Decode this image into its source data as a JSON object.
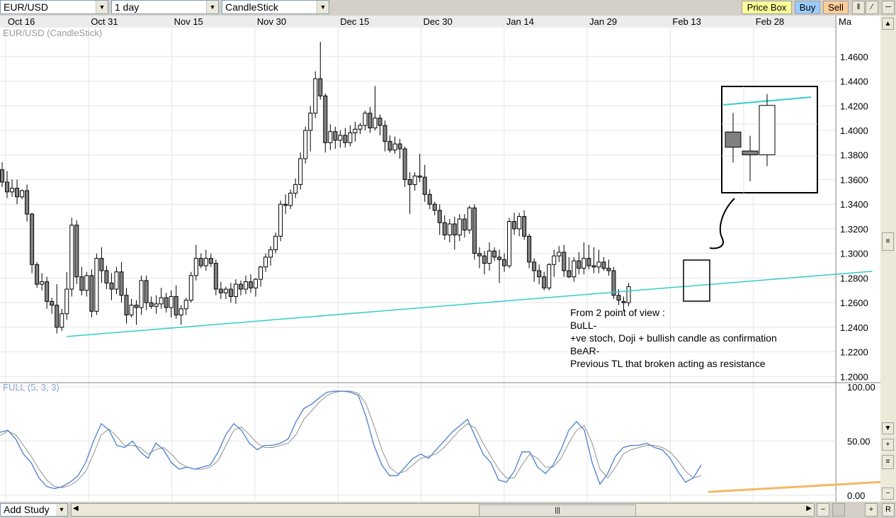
{
  "toolbar": {
    "symbol": "EUR/USD",
    "interval": "1 day",
    "chart_style": "CandleStick",
    "price_box_label": "Price Box",
    "buy_label": "Buy",
    "sell_label": "Sell"
  },
  "chart_label": "EUR/USD (CandleStick)",
  "stoch_label": "FULL (5, 3, 3)",
  "colors": {
    "trendline": "#33cccc",
    "support_line": "#f5b865",
    "stoch_k": "#4a7fd0",
    "stoch_d": "#909090",
    "candle_down": "#808080",
    "candle_up": "#ffffff",
    "price_box_bg": "#ffff99",
    "buy_bg": "#99ccff",
    "sell_bg": "#ffcc99"
  },
  "annotation": {
    "lines": [
      "From 2 point of view :",
      "BuLL-",
      "+ve stoch, Doji + bullish candle as confirmation",
      "BeAR-",
      "Previous TL that broken acting as resistance"
    ]
  },
  "bottom": {
    "add_study_label": "Add Study",
    "r_label": "R"
  },
  "chart_data": [
    {
      "type": "candlestick",
      "title": "EUR/USD (CandleStick)",
      "x_tick_labels": [
        "Oct 16",
        "Oct 31",
        "Nov 15",
        "Nov 30",
        "Dec 15",
        "Dec 30",
        "Jan 14",
        "Jan 29",
        "Feb 13",
        "Feb 28",
        "Ma"
      ],
      "y_tick_labels": [
        "1.2000",
        "1.2200",
        "1.2400",
        "1.2600",
        "1.2800",
        "1.3000",
        "1.3200",
        "1.3400",
        "1.3600",
        "1.3800",
        "1.4000",
        "1.4200",
        "1.4400",
        "1.4600"
      ],
      "ylim": [
        1.195,
        1.4835
      ],
      "grid": true,
      "candles": [
        {
          "o": 1.368,
          "h": 1.374,
          "l": 1.354,
          "c": 1.358
        },
        {
          "o": 1.358,
          "h": 1.367,
          "l": 1.345,
          "c": 1.35
        },
        {
          "o": 1.35,
          "h": 1.36,
          "l": 1.346,
          "c": 1.353
        },
        {
          "o": 1.353,
          "h": 1.36,
          "l": 1.34,
          "c": 1.346
        },
        {
          "o": 1.346,
          "h": 1.352,
          "l": 1.344,
          "c": 1.351
        },
        {
          "o": 1.351,
          "h": 1.356,
          "l": 1.326,
          "c": 1.332
        },
        {
          "o": 1.332,
          "h": 1.333,
          "l": 1.284,
          "c": 1.291
        },
        {
          "o": 1.291,
          "h": 1.293,
          "l": 1.272,
          "c": 1.275
        },
        {
          "o": 1.275,
          "h": 1.284,
          "l": 1.27,
          "c": 1.277
        },
        {
          "o": 1.277,
          "h": 1.281,
          "l": 1.255,
          "c": 1.261
        },
        {
          "o": 1.261,
          "h": 1.264,
          "l": 1.251,
          "c": 1.258
        },
        {
          "o": 1.258,
          "h": 1.275,
          "l": 1.235,
          "c": 1.24
        },
        {
          "o": 1.24,
          "h": 1.255,
          "l": 1.237,
          "c": 1.251
        },
        {
          "o": 1.251,
          "h": 1.285,
          "l": 1.246,
          "c": 1.271
        },
        {
          "o": 1.271,
          "h": 1.329,
          "l": 1.265,
          "c": 1.323
        },
        {
          "o": 1.323,
          "h": 1.327,
          "l": 1.275,
          "c": 1.281
        },
        {
          "o": 1.281,
          "h": 1.289,
          "l": 1.266,
          "c": 1.27
        },
        {
          "o": 1.27,
          "h": 1.285,
          "l": 1.265,
          "c": 1.282
        },
        {
          "o": 1.282,
          "h": 1.287,
          "l": 1.248,
          "c": 1.253
        },
        {
          "o": 1.253,
          "h": 1.3,
          "l": 1.25,
          "c": 1.296
        },
        {
          "o": 1.296,
          "h": 1.305,
          "l": 1.276,
          "c": 1.286
        },
        {
          "o": 1.286,
          "h": 1.29,
          "l": 1.271,
          "c": 1.276
        },
        {
          "o": 1.276,
          "h": 1.284,
          "l": 1.262,
          "c": 1.271
        },
        {
          "o": 1.271,
          "h": 1.289,
          "l": 1.267,
          "c": 1.285
        },
        {
          "o": 1.285,
          "h": 1.293,
          "l": 1.26,
          "c": 1.266
        },
        {
          "o": 1.266,
          "h": 1.272,
          "l": 1.243,
          "c": 1.25
        },
        {
          "o": 1.25,
          "h": 1.263,
          "l": 1.248,
          "c": 1.258
        },
        {
          "o": 1.258,
          "h": 1.262,
          "l": 1.242,
          "c": 1.256
        },
        {
          "o": 1.256,
          "h": 1.282,
          "l": 1.25,
          "c": 1.278
        },
        {
          "o": 1.278,
          "h": 1.282,
          "l": 1.254,
          "c": 1.26
        },
        {
          "o": 1.26,
          "h": 1.265,
          "l": 1.255,
          "c": 1.257
        },
        {
          "o": 1.257,
          "h": 1.266,
          "l": 1.251,
          "c": 1.259
        },
        {
          "o": 1.259,
          "h": 1.272,
          "l": 1.255,
          "c": 1.264
        },
        {
          "o": 1.264,
          "h": 1.268,
          "l": 1.252,
          "c": 1.256
        },
        {
          "o": 1.256,
          "h": 1.27,
          "l": 1.248,
          "c": 1.265
        },
        {
          "o": 1.265,
          "h": 1.274,
          "l": 1.247,
          "c": 1.25
        },
        {
          "o": 1.25,
          "h": 1.258,
          "l": 1.242,
          "c": 1.255
        },
        {
          "o": 1.255,
          "h": 1.264,
          "l": 1.25,
          "c": 1.262
        },
        {
          "o": 1.262,
          "h": 1.285,
          "l": 1.26,
          "c": 1.282
        },
        {
          "o": 1.282,
          "h": 1.307,
          "l": 1.278,
          "c": 1.296
        },
        {
          "o": 1.296,
          "h": 1.3,
          "l": 1.288,
          "c": 1.29
        },
        {
          "o": 1.29,
          "h": 1.303,
          "l": 1.286,
          "c": 1.296
        },
        {
          "o": 1.296,
          "h": 1.3,
          "l": 1.289,
          "c": 1.292
        },
        {
          "o": 1.292,
          "h": 1.295,
          "l": 1.266,
          "c": 1.271
        },
        {
          "o": 1.271,
          "h": 1.277,
          "l": 1.263,
          "c": 1.268
        },
        {
          "o": 1.268,
          "h": 1.273,
          "l": 1.263,
          "c": 1.271
        },
        {
          "o": 1.271,
          "h": 1.276,
          "l": 1.26,
          "c": 1.265
        },
        {
          "o": 1.265,
          "h": 1.279,
          "l": 1.259,
          "c": 1.275
        },
        {
          "o": 1.275,
          "h": 1.278,
          "l": 1.266,
          "c": 1.271
        },
        {
          "o": 1.271,
          "h": 1.282,
          "l": 1.267,
          "c": 1.277
        },
        {
          "o": 1.277,
          "h": 1.283,
          "l": 1.268,
          "c": 1.272
        },
        {
          "o": 1.272,
          "h": 1.28,
          "l": 1.265,
          "c": 1.279
        },
        {
          "o": 1.279,
          "h": 1.29,
          "l": 1.273,
          "c": 1.289
        },
        {
          "o": 1.289,
          "h": 1.3,
          "l": 1.285,
          "c": 1.297
        },
        {
          "o": 1.297,
          "h": 1.306,
          "l": 1.29,
          "c": 1.303
        },
        {
          "o": 1.303,
          "h": 1.317,
          "l": 1.3,
          "c": 1.314
        },
        {
          "o": 1.314,
          "h": 1.343,
          "l": 1.31,
          "c": 1.34
        },
        {
          "o": 1.34,
          "h": 1.348,
          "l": 1.332,
          "c": 1.339
        },
        {
          "o": 1.339,
          "h": 1.352,
          "l": 1.336,
          "c": 1.349
        },
        {
          "o": 1.349,
          "h": 1.361,
          "l": 1.345,
          "c": 1.356
        },
        {
          "o": 1.356,
          "h": 1.382,
          "l": 1.352,
          "c": 1.377
        },
        {
          "o": 1.377,
          "h": 1.403,
          "l": 1.373,
          "c": 1.4
        },
        {
          "o": 1.4,
          "h": 1.42,
          "l": 1.383,
          "c": 1.414
        },
        {
          "o": 1.414,
          "h": 1.448,
          "l": 1.41,
          "c": 1.442
        },
        {
          "o": 1.442,
          "h": 1.472,
          "l": 1.425,
          "c": 1.428
        },
        {
          "o": 1.428,
          "h": 1.43,
          "l": 1.382,
          "c": 1.39
        },
        {
          "o": 1.39,
          "h": 1.405,
          "l": 1.384,
          "c": 1.399
        },
        {
          "o": 1.399,
          "h": 1.403,
          "l": 1.385,
          "c": 1.392
        },
        {
          "o": 1.392,
          "h": 1.4,
          "l": 1.386,
          "c": 1.396
        },
        {
          "o": 1.396,
          "h": 1.402,
          "l": 1.386,
          "c": 1.39
        },
        {
          "o": 1.39,
          "h": 1.404,
          "l": 1.387,
          "c": 1.398
        },
        {
          "o": 1.398,
          "h": 1.407,
          "l": 1.391,
          "c": 1.401
        },
        {
          "o": 1.401,
          "h": 1.406,
          "l": 1.397,
          "c": 1.404
        },
        {
          "o": 1.404,
          "h": 1.416,
          "l": 1.4,
          "c": 1.414
        },
        {
          "o": 1.414,
          "h": 1.419,
          "l": 1.398,
          "c": 1.402
        },
        {
          "o": 1.402,
          "h": 1.436,
          "l": 1.4,
          "c": 1.41
        },
        {
          "o": 1.41,
          "h": 1.413,
          "l": 1.396,
          "c": 1.404
        },
        {
          "o": 1.404,
          "h": 1.408,
          "l": 1.383,
          "c": 1.391
        },
        {
          "o": 1.391,
          "h": 1.396,
          "l": 1.382,
          "c": 1.384
        },
        {
          "o": 1.384,
          "h": 1.395,
          "l": 1.381,
          "c": 1.389
        },
        {
          "o": 1.389,
          "h": 1.393,
          "l": 1.377,
          "c": 1.385
        },
        {
          "o": 1.385,
          "h": 1.387,
          "l": 1.354,
          "c": 1.36
        },
        {
          "o": 1.36,
          "h": 1.366,
          "l": 1.332,
          "c": 1.356
        },
        {
          "o": 1.356,
          "h": 1.366,
          "l": 1.351,
          "c": 1.363
        },
        {
          "o": 1.363,
          "h": 1.381,
          "l": 1.358,
          "c": 1.362
        },
        {
          "o": 1.362,
          "h": 1.372,
          "l": 1.342,
          "c": 1.348
        },
        {
          "o": 1.348,
          "h": 1.352,
          "l": 1.336,
          "c": 1.34
        },
        {
          "o": 1.34,
          "h": 1.342,
          "l": 1.331,
          "c": 1.335
        },
        {
          "o": 1.335,
          "h": 1.34,
          "l": 1.315,
          "c": 1.325
        },
        {
          "o": 1.325,
          "h": 1.331,
          "l": 1.311,
          "c": 1.315
        },
        {
          "o": 1.315,
          "h": 1.328,
          "l": 1.309,
          "c": 1.324
        },
        {
          "o": 1.324,
          "h": 1.33,
          "l": 1.303,
          "c": 1.315
        },
        {
          "o": 1.315,
          "h": 1.332,
          "l": 1.31,
          "c": 1.328
        },
        {
          "o": 1.328,
          "h": 1.332,
          "l": 1.313,
          "c": 1.319
        },
        {
          "o": 1.319,
          "h": 1.339,
          "l": 1.316,
          "c": 1.337
        },
        {
          "o": 1.337,
          "h": 1.34,
          "l": 1.295,
          "c": 1.3
        },
        {
          "o": 1.3,
          "h": 1.305,
          "l": 1.288,
          "c": 1.298
        },
        {
          "o": 1.298,
          "h": 1.302,
          "l": 1.283,
          "c": 1.292
        },
        {
          "o": 1.292,
          "h": 1.309,
          "l": 1.286,
          "c": 1.302
        },
        {
          "o": 1.302,
          "h": 1.305,
          "l": 1.294,
          "c": 1.297
        },
        {
          "o": 1.297,
          "h": 1.303,
          "l": 1.276,
          "c": 1.295
        },
        {
          "o": 1.295,
          "h": 1.3,
          "l": 1.285,
          "c": 1.29
        },
        {
          "o": 1.29,
          "h": 1.329,
          "l": 1.288,
          "c": 1.326
        },
        {
          "o": 1.326,
          "h": 1.333,
          "l": 1.315,
          "c": 1.32
        },
        {
          "o": 1.32,
          "h": 1.333,
          "l": 1.314,
          "c": 1.33
        },
        {
          "o": 1.33,
          "h": 1.335,
          "l": 1.311,
          "c": 1.314
        },
        {
          "o": 1.314,
          "h": 1.316,
          "l": 1.288,
          "c": 1.293
        },
        {
          "o": 1.293,
          "h": 1.296,
          "l": 1.277,
          "c": 1.286
        },
        {
          "o": 1.286,
          "h": 1.291,
          "l": 1.275,
          "c": 1.281
        },
        {
          "o": 1.281,
          "h": 1.285,
          "l": 1.27,
          "c": 1.272
        },
        {
          "o": 1.272,
          "h": 1.292,
          "l": 1.27,
          "c": 1.291
        },
        {
          "o": 1.291,
          "h": 1.303,
          "l": 1.281,
          "c": 1.298
        },
        {
          "o": 1.298,
          "h": 1.306,
          "l": 1.293,
          "c": 1.301
        },
        {
          "o": 1.301,
          "h": 1.307,
          "l": 1.281,
          "c": 1.286
        },
        {
          "o": 1.286,
          "h": 1.297,
          "l": 1.28,
          "c": 1.281
        },
        {
          "o": 1.281,
          "h": 1.297,
          "l": 1.277,
          "c": 1.294
        },
        {
          "o": 1.294,
          "h": 1.301,
          "l": 1.283,
          "c": 1.288
        },
        {
          "o": 1.288,
          "h": 1.309,
          "l": 1.283,
          "c": 1.296
        },
        {
          "o": 1.296,
          "h": 1.307,
          "l": 1.287,
          "c": 1.29
        },
        {
          "o": 1.29,
          "h": 1.305,
          "l": 1.284,
          "c": 1.289
        },
        {
          "o": 1.289,
          "h": 1.303,
          "l": 1.284,
          "c": 1.293
        },
        {
          "o": 1.293,
          "h": 1.297,
          "l": 1.286,
          "c": 1.288
        },
        {
          "o": 1.288,
          "h": 1.295,
          "l": 1.282,
          "c": 1.286
        },
        {
          "o": 1.286,
          "h": 1.289,
          "l": 1.263,
          "c": 1.266
        },
        {
          "o": 1.266,
          "h": 1.271,
          "l": 1.258,
          "c": 1.262
        },
        {
          "o": 1.261,
          "h": 1.265,
          "l": 1.253,
          "c": 1.26
        },
        {
          "o": 1.26,
          "h": 1.276,
          "l": 1.257,
          "c": 1.273
        }
      ],
      "trendline": {
        "start": {
          "index": 13,
          "price": 1.2325
        },
        "end": {
          "index": 175,
          "price": 1.2855
        }
      }
    },
    {
      "type": "line",
      "title": "FULL (5, 3, 3)",
      "y_tick_labels": [
        "0.00",
        "50.00",
        "100.00"
      ],
      "ylim": [
        -6.0,
        103.2
      ],
      "grid": true,
      "series": [
        {
          "values": [
            58,
            60,
            52,
            38,
            30,
            16,
            8,
            6,
            8,
            12,
            18,
            30,
            50,
            66,
            60,
            46,
            44,
            50,
            40,
            34,
            48,
            42,
            30,
            24,
            26,
            24,
            26,
            28,
            40,
            56,
            66,
            60,
            48,
            42,
            46,
            46,
            48,
            52,
            68,
            80,
            84,
            90,
            95,
            96,
            96,
            95,
            92,
            72,
            46,
            28,
            18,
            18,
            26,
            34,
            38,
            34,
            42,
            50,
            58,
            64,
            70,
            54,
            38,
            30,
            14,
            12,
            22,
            40,
            40,
            26,
            20,
            28,
            42,
            60,
            68,
            60,
            30,
            10,
            20,
            36,
            44,
            46,
            46,
            48,
            44,
            42,
            34,
            22,
            12,
            16,
            28
          ]
        },
        {
          "values": [
            55,
            59,
            56,
            46,
            36,
            24,
            14,
            8,
            7,
            9,
            14,
            22,
            38,
            56,
            61,
            54,
            46,
            46,
            44,
            38,
            42,
            44,
            38,
            30,
            26,
            24,
            24,
            26,
            32,
            46,
            60,
            63,
            56,
            48,
            44,
            44,
            46,
            48,
            56,
            70,
            78,
            86,
            92,
            95,
            96,
            96,
            94,
            84,
            64,
            42,
            26,
            20,
            22,
            28,
            34,
            36,
            38,
            44,
            52,
            60,
            66,
            62,
            48,
            36,
            24,
            16,
            16,
            28,
            38,
            34,
            26,
            26,
            34,
            48,
            60,
            64,
            48,
            24,
            16,
            26,
            38,
            42,
            44,
            46,
            46,
            44,
            40,
            32,
            22,
            16,
            18
          ]
        }
      ],
      "support_line": {
        "start": {
          "index": 142,
          "value": 3
        },
        "end": {
          "index": 180,
          "value": 13
        }
      }
    }
  ]
}
